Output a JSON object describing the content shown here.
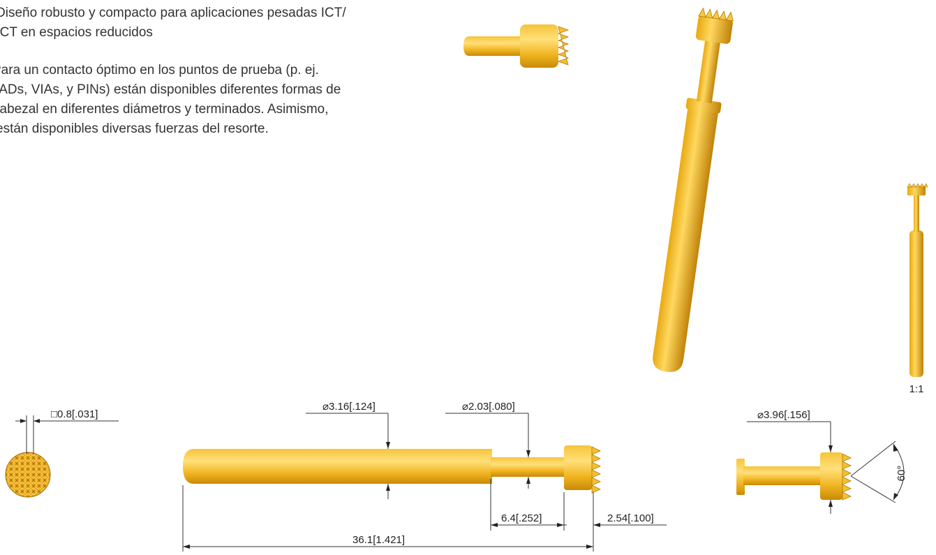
{
  "description": {
    "paragraphs": [
      {
        "lines": [
          "Diseño robusto y compacto para aplicaciones pesadas ICT/",
          "FCT en espacios reducidos"
        ]
      },
      {
        "lines": [
          "Para un contacto óptimo en los puntos de prueba (p. ej.",
          "PADs, VIAs, y PINs) están disponibles diferentes formas de",
          "cabezal en diferentes diámetros y terminados. Asimismo,",
          "están disponibles diversas fuerzas del resorte."
        ]
      }
    ]
  },
  "scale_label": "1:1",
  "dimensions": {
    "tip_grid": "□0.8[.031]",
    "barrel_diameter": "⌀3.16[.124]",
    "plunger_diameter": "⌀2.03[.080]",
    "plunger_length": "6.4[.252]",
    "head_length": "2.54[.100]",
    "total_length": "36.1[1.421]",
    "head_diameter": "⌀3.96[.156]",
    "tip_angle": "60°"
  }
}
